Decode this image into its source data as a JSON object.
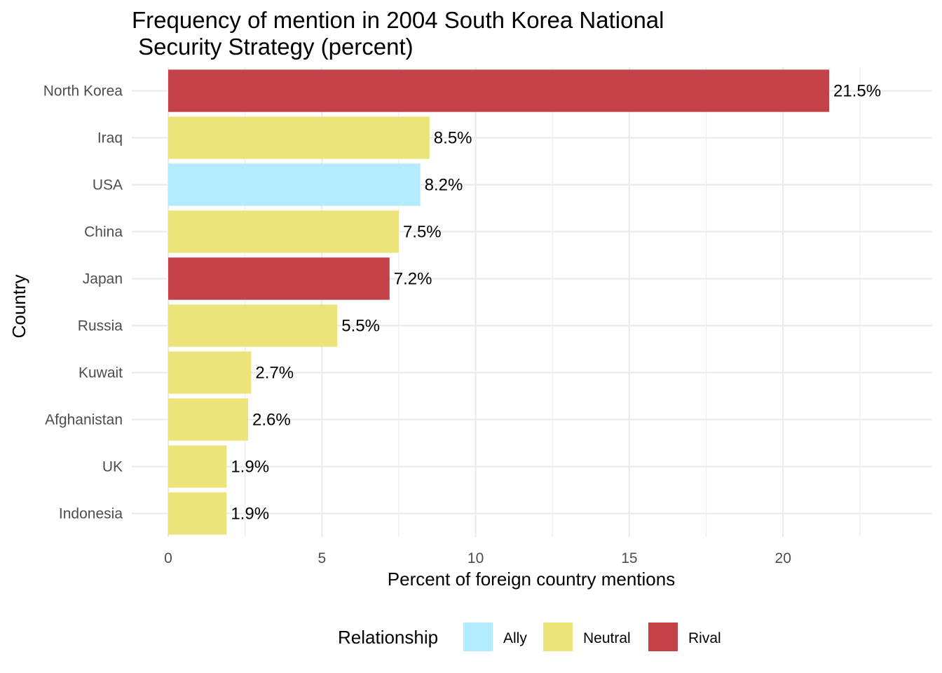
{
  "chart_data": {
    "type": "bar",
    "orientation": "horizontal",
    "title_lines": [
      "Frequency of mention in 2004 South Korea National",
      " Security Strategy (percent)"
    ],
    "xlabel": "Percent of foreign country mentions",
    "ylabel": "Country",
    "xlim": [
      0,
      24.5
    ],
    "x_ticks": [
      0,
      5,
      10,
      15,
      20
    ],
    "grid": true,
    "categories": [
      "North Korea",
      "Iraq",
      "USA",
      "China",
      "Japan",
      "Russia",
      "Kuwait",
      "Afghanistan",
      "UK",
      "Indonesia"
    ],
    "values": [
      21.5,
      8.5,
      8.2,
      7.5,
      7.2,
      5.5,
      2.7,
      2.6,
      1.9,
      1.9
    ],
    "data_labels": [
      "21.5%",
      "8.5%",
      "8.2%",
      "7.5%",
      "7.2%",
      "5.5%",
      "2.7%",
      "2.6%",
      "1.9%",
      "1.9%"
    ],
    "groups": [
      "Rival",
      "Neutral",
      "Ally",
      "Neutral",
      "Rival",
      "Neutral",
      "Neutral",
      "Neutral",
      "Neutral",
      "Neutral"
    ],
    "legend": {
      "title": "Relationship",
      "position": "bottom",
      "entries": [
        {
          "name": "Ally",
          "color": "#b3ecff"
        },
        {
          "name": "Neutral",
          "color": "#ece37a"
        },
        {
          "name": "Rival",
          "color": "#c34247"
        }
      ]
    }
  }
}
